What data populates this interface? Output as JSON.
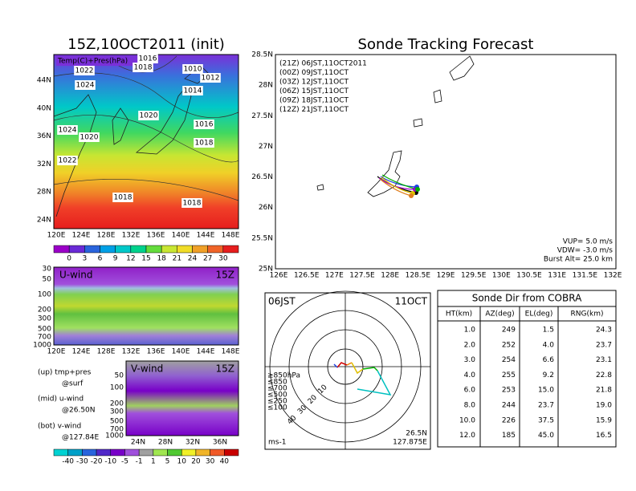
{
  "left_map": {
    "title": "15Z,10OCT2011 (init)",
    "label": "Temp(C)+Pres(hPa)",
    "lat_labels": [
      "44N",
      "40N",
      "36N",
      "32N",
      "28N",
      "24N"
    ],
    "lon_labels": [
      "120E",
      "124E",
      "128E",
      "132E",
      "136E",
      "140E",
      "144E",
      "148E"
    ],
    "isobars": [
      "1016",
      "1018",
      "1022",
      "1024",
      "1010",
      "1012",
      "1014",
      "1020",
      "1016",
      "1024",
      "1020",
      "1018",
      "1022",
      "1018",
      "1018"
    ],
    "colorbar": {
      "labels": [
        "0",
        "3",
        "6",
        "9",
        "12",
        "15",
        "18",
        "21",
        "24",
        "27",
        "30"
      ],
      "colors": [
        "#9b00c8",
        "#6a2ad6",
        "#2a64dc",
        "#00a0e6",
        "#00c8c8",
        "#00d28c",
        "#64dc3c",
        "#c8e632",
        "#f0dc28",
        "#f0a028",
        "#f06428",
        "#e61e1e"
      ]
    }
  },
  "u_wind": {
    "label": "U-wind",
    "time": "15Z",
    "levels": [
      "30",
      "50",
      "100",
      "200",
      "300",
      "500",
      "700",
      "1000"
    ],
    "lon_labels": [
      "120E",
      "124E",
      "128E",
      "132E",
      "136E",
      "140E",
      "144E",
      "148E"
    ]
  },
  "v_wind": {
    "label": "V-wind",
    "time": "15Z",
    "levels": [
      "50",
      "100",
      "200",
      "300",
      "500",
      "700",
      "1000"
    ],
    "lat_labels": [
      "24N",
      "28N",
      "32N",
      "36N"
    ]
  },
  "notes": [
    "(up) tmp+pres",
    "@surf",
    "(mid) u-wind",
    "@26.50N",
    "(bot) v-wind",
    "@127.84E"
  ],
  "wind_colorbar": {
    "labels": [
      "-40",
      "-30",
      "-20",
      "-10",
      "-5",
      "-1",
      "1",
      "5",
      "10",
      "20",
      "30",
      "40"
    ],
    "colors": [
      "#00d2d2",
      "#00a0c8",
      "#2864dc",
      "#5028c8",
      "#7800c8",
      "#a050dc",
      "#a0a0a0",
      "#a0e650",
      "#50c832",
      "#f0f028",
      "#f0b428",
      "#f05a28",
      "#c80000"
    ]
  },
  "sonde_map": {
    "title": "Sonde Tracking Forecast",
    "legend": [
      {
        "text": "(21Z)  06JST,11OCT2011",
        "color": "#000000"
      },
      {
        "text": "(00Z)  09JST,11OCT",
        "color": "#a000c8"
      },
      {
        "text": "(03Z)  12JST,11OCT",
        "color": "#2040e0"
      },
      {
        "text": "(06Z)  15JST,11OCT",
        "color": "#00b000"
      },
      {
        "text": "(09Z)  18JST,11OCT",
        "color": "#e0c000"
      },
      {
        "text": "(12Z)  21JST,11OCT",
        "color": "#e08020"
      }
    ],
    "lat_labels": [
      "28.5N",
      "28N",
      "27.5N",
      "27N",
      "26.5N",
      "26N",
      "25.5N",
      "25N"
    ],
    "lon_labels": [
      "126E",
      "126.5E",
      "127E",
      "127.5E",
      "128E",
      "128.5E",
      "129E",
      "129.5E",
      "130E",
      "130.5E",
      "131E",
      "131.5E",
      "132E"
    ],
    "params": [
      "VUP=  5.0 m/s",
      "VDW= -3.0 m/s",
      "Burst Alt= 25.0 km"
    ]
  },
  "hodograph": {
    "time": "06JST",
    "date": "11OCT",
    "lat": "26.5N",
    "lon": "127.875E",
    "unit": "ms-1",
    "rings": [
      "10",
      "20",
      "30",
      "40"
    ],
    "legend": [
      {
        "text": "≥850hPa",
        "color": "#d00000"
      },
      {
        "text": "≤850",
        "color": "#f08000"
      },
      {
        "text": "≤700",
        "color": "#e0c000"
      },
      {
        "text": "≤500",
        "color": "#00b000"
      },
      {
        "text": "≤250",
        "color": "#00c0c0"
      },
      {
        "text": "≤100",
        "color": "#2040e0"
      }
    ]
  },
  "table": {
    "title": "Sonde Dir from COBRA",
    "header": [
      "HT(km)",
      "AZ(deg)",
      "EL(deg)",
      "RNG(km)"
    ],
    "rows": [
      [
        "1.0",
        "249",
        "1.5",
        "24.3"
      ],
      [
        "2.0",
        "252",
        "4.0",
        "23.7"
      ],
      [
        "3.0",
        "254",
        "6.6",
        "23.1"
      ],
      [
        "4.0",
        "255",
        "9.2",
        "22.8"
      ],
      [
        "6.0",
        "253",
        "15.0",
        "21.8"
      ],
      [
        "8.0",
        "244",
        "23.7",
        "19.0"
      ],
      [
        "10.0",
        "226",
        "37.5",
        "15.9"
      ],
      [
        "12.0",
        "185",
        "45.0",
        "16.5"
      ]
    ]
  }
}
